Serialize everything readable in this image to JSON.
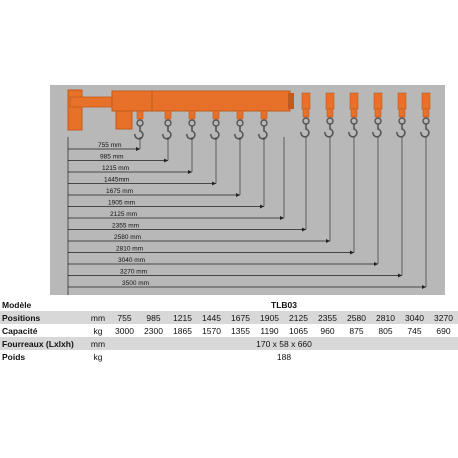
{
  "diagram": {
    "reach_labels": [
      "755 mm",
      "985 mm",
      "1215 mm",
      "1445mm",
      "1675 mm",
      "1905 mm",
      "2125 mm",
      "2355 mm",
      "2580 mm",
      "2810 mm",
      "3040 mm",
      "3270 mm",
      "3500 mm"
    ],
    "colors": {
      "beam": "#e8712a",
      "beam_dark": "#c25a1a",
      "background": "#b8b8b8",
      "hook": "#555555",
      "lines": "#222222"
    }
  },
  "table": {
    "model_label": "Modèle",
    "model_value": "TLB03",
    "positions": {
      "label": "Positions",
      "unit": "mm",
      "values": [
        "755",
        "985",
        "1215",
        "1445",
        "1675",
        "1905",
        "2125",
        "2355",
        "2580",
        "2810",
        "3040",
        "3270"
      ]
    },
    "capacity": {
      "label": "Capacité",
      "unit": "kg",
      "values": [
        "3000",
        "2300",
        "1865",
        "1570",
        "1355",
        "1190",
        "1065",
        "960",
        "875",
        "805",
        "745",
        "690"
      ]
    },
    "sleeves": {
      "label": "Fourreaux (Lxlxh)",
      "unit": "mm",
      "value": "170 x 58 x 660"
    },
    "weight": {
      "label": "Poids",
      "unit": "kg",
      "value": "188"
    }
  }
}
